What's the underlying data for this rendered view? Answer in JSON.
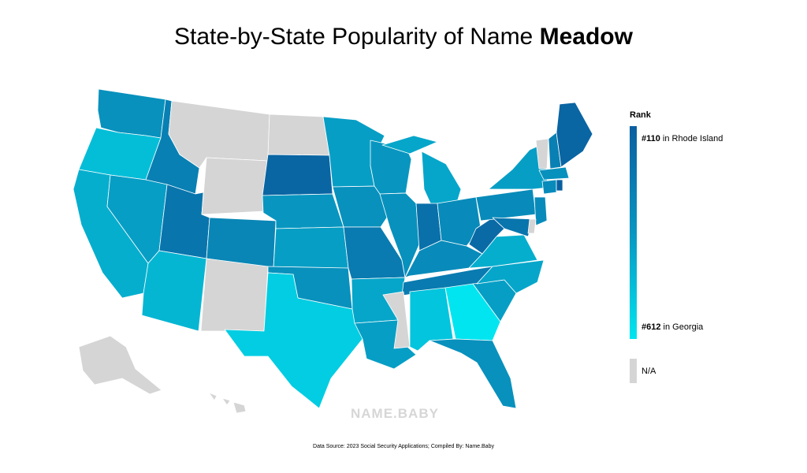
{
  "title": {
    "prefix": "State-by-State Popularity of Name ",
    "name": "Meadow"
  },
  "legend": {
    "title": "Rank",
    "high_rank": "#110",
    "high_text": " in Rhode Island",
    "low_rank": "#612",
    "low_text": " in Georgia",
    "na_label": "N/A"
  },
  "watermark": "NAME.BABY",
  "source": "Data Source: 2023 Social Security Applications; Compiled By: Name.Baby",
  "colors": {
    "high": "#0a5fa0",
    "mid": "#0896c0",
    "low": "#00e5f0",
    "na": "#d5d5d5",
    "border": "#ffffff"
  },
  "chart_data": {
    "type": "choropleth",
    "metric": "Rank",
    "scale": {
      "best_rank": 110,
      "best_state": "Rhode Island",
      "worst_rank": 612,
      "worst_state": "Georgia"
    },
    "states_na": [
      "MT",
      "ND",
      "WY",
      "NM",
      "MS",
      "AK",
      "HI",
      "VT",
      "DE"
    ],
    "states": {
      "WA": 0.55,
      "OR": 0.25,
      "CA": 0.35,
      "ID": 0.7,
      "NV": 0.45,
      "UT": 0.8,
      "AZ": 0.3,
      "CO": 0.65,
      "SD": 0.95,
      "NE": 0.5,
      "KS": 0.45,
      "OK": 0.55,
      "TX": 0.15,
      "MN": 0.45,
      "IA": 0.55,
      "MO": 0.75,
      "AR": 0.4,
      "LA": 0.45,
      "WI": 0.5,
      "IL": 0.55,
      "MI": 0.4,
      "IN": 0.85,
      "OH": 0.6,
      "KY": 0.6,
      "TN": 0.75,
      "AL": 0.2,
      "GA": 0.0,
      "FL": 0.55,
      "SC": 0.45,
      "NC": 0.4,
      "VA": 0.35,
      "WV": 0.9,
      "PA": 0.6,
      "NY": 0.45,
      "NJ": 0.6,
      "MD": 0.8,
      "ME": 0.95,
      "NH": 0.7,
      "MA": 0.55,
      "CT": 0.6,
      "RI": 1.0
    }
  }
}
